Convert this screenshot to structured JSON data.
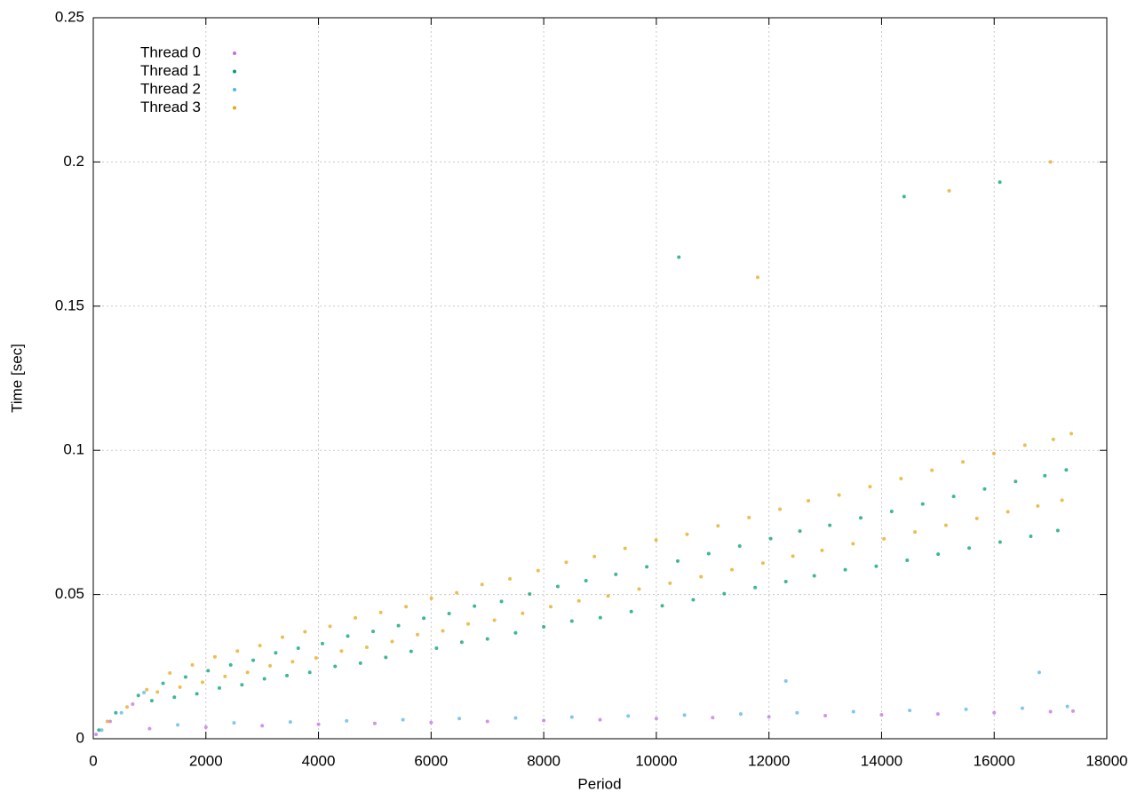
{
  "chart_data": {
    "type": "scatter",
    "x_label": "Period",
    "y_label": "Time [sec]",
    "xlim": [
      0,
      18000
    ],
    "ylim": [
      0,
      0.25
    ],
    "xticks": [
      0,
      2000,
      4000,
      6000,
      8000,
      10000,
      12000,
      14000,
      16000,
      18000
    ],
    "yticks": [
      0,
      0.05,
      0.1,
      0.15,
      0.2,
      0.25
    ],
    "grid": true,
    "legend": "top-left",
    "series": [
      {
        "name": "Thread 0",
        "color": "#c070e0",
        "x": [
          50,
          300,
          700,
          1000,
          2000,
          3000,
          4000,
          5000,
          6000,
          7000,
          8000,
          9000,
          10000,
          11000,
          12000,
          13000,
          14000,
          15000,
          16000,
          17000,
          17400
        ],
        "values": [
          0.0015,
          0.006,
          0.012,
          0.0035,
          0.004,
          0.0045,
          0.005,
          0.0053,
          0.0056,
          0.006,
          0.0063,
          0.0066,
          0.007,
          0.0073,
          0.0076,
          0.008,
          0.0083,
          0.0086,
          0.009,
          0.0094,
          0.0096
        ]
      },
      {
        "name": "Thread 1",
        "color": "#009e73",
        "x": [
          100,
          400,
          800,
          1040,
          1240,
          1440,
          1640,
          1840,
          2040,
          2240,
          2440,
          2640,
          2840,
          3040,
          3240,
          3440,
          3640,
          3845,
          4070,
          4295,
          4520,
          4745,
          4970,
          5195,
          5420,
          5645,
          5870,
          6095,
          6320,
          6545,
          6770,
          7000,
          7250,
          7500,
          7750,
          8000,
          8250,
          8500,
          8750,
          9005,
          9280,
          9555,
          9830,
          10105,
          10380,
          10655,
          10930,
          11205,
          11480,
          11755,
          12030,
          12300,
          12550,
          12805,
          13080,
          13355,
          13630,
          13905,
          14180,
          14455,
          14730,
          15005,
          15280,
          15555,
          15830,
          16105,
          16380,
          16650,
          16900,
          17130,
          17280,
          10400,
          14400,
          16100
        ],
        "values": [
          0.003,
          0.009,
          0.015,
          0.0132,
          0.0192,
          0.0144,
          0.0214,
          0.0156,
          0.0236,
          0.0176,
          0.0256,
          0.0187,
          0.0272,
          0.0208,
          0.0298,
          0.0219,
          0.0314,
          0.023,
          0.033,
          0.0251,
          0.0356,
          0.0262,
          0.0372,
          0.0282,
          0.0392,
          0.0303,
          0.0418,
          0.0314,
          0.0434,
          0.0335,
          0.046,
          0.0346,
          0.0476,
          0.0367,
          0.0502,
          0.0388,
          0.0528,
          0.0408,
          0.0548,
          0.042,
          0.057,
          0.0441,
          0.0596,
          0.0461,
          0.0616,
          0.0482,
          0.0642,
          0.0503,
          0.0668,
          0.0524,
          0.0694,
          0.0545,
          0.072,
          0.0565,
          0.074,
          0.0586,
          0.0766,
          0.0598,
          0.0788,
          0.0619,
          0.0814,
          0.064,
          0.084,
          0.0661,
          0.0866,
          0.0682,
          0.0892,
          0.0702,
          0.0912,
          0.0722,
          0.0932,
          0.167,
          0.188,
          0.193
        ]
      },
      {
        "name": "Thread 2",
        "color": "#56b4e9",
        "x": [
          150,
          500,
          900,
          1500,
          2500,
          3500,
          4500,
          5500,
          6500,
          7500,
          8500,
          9500,
          10500,
          11500,
          12500,
          13500,
          14500,
          15500,
          16500,
          17300,
          12300,
          16800
        ],
        "values": [
          0.003,
          0.009,
          0.016,
          0.0048,
          0.0055,
          0.0058,
          0.0062,
          0.0066,
          0.007,
          0.0072,
          0.0075,
          0.0079,
          0.0082,
          0.0086,
          0.009,
          0.0094,
          0.0098,
          0.0102,
          0.0106,
          0.0112,
          0.02,
          0.023
        ]
      },
      {
        "name": "Thread 3",
        "color": "#e6a817",
        "x": [
          250,
          600,
          950,
          1140,
          1360,
          1540,
          1760,
          1940,
          2160,
          2340,
          2560,
          2740,
          2960,
          3140,
          3360,
          3540,
          3760,
          3958,
          4205,
          4408,
          4655,
          4858,
          5105,
          5308,
          5555,
          5758,
          6005,
          6208,
          6455,
          6658,
          6905,
          7125,
          7400,
          7625,
          7900,
          8125,
          8400,
          8625,
          8900,
          9143,
          9445,
          9693,
          9995,
          10243,
          10545,
          10793,
          11095,
          11343,
          11645,
          11893,
          12195,
          12425,
          12700,
          12943,
          13245,
          13493,
          13795,
          14043,
          14345,
          14593,
          14895,
          15143,
          15445,
          15693,
          15995,
          16243,
          16545,
          16775,
          17050,
          17205,
          17370,
          15200,
          17000,
          11800
        ],
        "values": [
          0.006,
          0.011,
          0.017,
          0.0162,
          0.0228,
          0.0179,
          0.0256,
          0.0196,
          0.0284,
          0.0216,
          0.0304,
          0.023,
          0.0323,
          0.0253,
          0.0352,
          0.0267,
          0.0371,
          0.028,
          0.039,
          0.0304,
          0.0419,
          0.0317,
          0.0438,
          0.0337,
          0.0458,
          0.0361,
          0.0487,
          0.0374,
          0.0506,
          0.0398,
          0.0535,
          0.0411,
          0.0554,
          0.0435,
          0.0583,
          0.0458,
          0.0612,
          0.0478,
          0.0632,
          0.0495,
          0.066,
          0.0519,
          0.0689,
          0.0539,
          0.0709,
          0.0562,
          0.0738,
          0.0586,
          0.0767,
          0.0609,
          0.0796,
          0.0633,
          0.0825,
          0.0653,
          0.0845,
          0.0676,
          0.0874,
          0.0693,
          0.0902,
          0.0717,
          0.0931,
          0.074,
          0.096,
          0.0764,
          0.0989,
          0.0787,
          0.1018,
          0.0807,
          0.1038,
          0.0827,
          0.1058,
          0.19,
          0.2,
          0.16
        ]
      }
    ]
  }
}
